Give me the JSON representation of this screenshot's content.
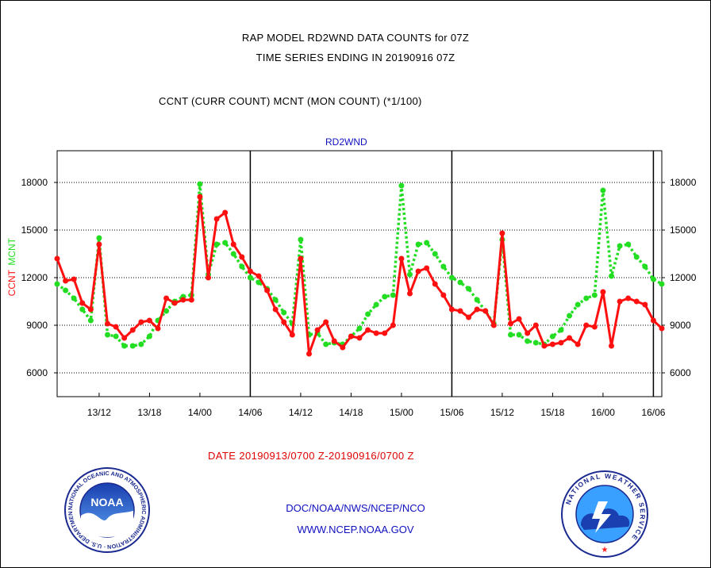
{
  "header": {
    "line1": "RAP MODEL RD2WND DATA COUNTS for 07Z",
    "line2": "TIME SERIES ENDING IN 20190916 07Z",
    "subtitle": "CCNT (CURR COUNT) MCNT (MON COUNT) (*1/100)"
  },
  "colors": {
    "ccnt": "#ff1010",
    "mcnt": "#22dd22",
    "blue_text": "#1010c0"
  },
  "chart_data": {
    "type": "line",
    "title": "RD2WND",
    "ylabel_left_red": "CCNT",
    "ylabel_left_green": "MCNT",
    "xlabel": "DATE 20190913/0700 Z-20190916/0700 Z",
    "ylim": [
      4500,
      20000
    ],
    "yticks": [
      6000,
      9000,
      12000,
      15000,
      18000
    ],
    "ytick_labels": [
      "6000",
      "9000",
      "12000",
      "15000",
      "18000"
    ],
    "xlim": [
      0,
      72
    ],
    "xticks": [
      5,
      11,
      17,
      23,
      29,
      35,
      41,
      47,
      53,
      59,
      65,
      71
    ],
    "xtick_labels": [
      "13/12",
      "13/18",
      "14/00",
      "14/06",
      "14/12",
      "14/18",
      "15/00",
      "15/06",
      "15/12",
      "15/18",
      "16/00",
      "16/06"
    ],
    "day_separators": [
      23,
      47,
      71
    ],
    "x": [
      0,
      1,
      2,
      3,
      4,
      5,
      6,
      7,
      8,
      9,
      10,
      11,
      12,
      13,
      14,
      15,
      16,
      17,
      18,
      19,
      20,
      21,
      22,
      23,
      24,
      25,
      26,
      27,
      28,
      29,
      30,
      31,
      32,
      33,
      34,
      35,
      36,
      37,
      38,
      39,
      40,
      41,
      42,
      43,
      44,
      45,
      46,
      47,
      48,
      49,
      50,
      51,
      52,
      53,
      54,
      55,
      56,
      57,
      58,
      59,
      60,
      61,
      62,
      63,
      64,
      65,
      66,
      67,
      68,
      69,
      70,
      71,
      72
    ],
    "grid": true,
    "series": [
      {
        "name": "CCNT",
        "color": "#ff1010",
        "style": "solid",
        "values": [
          13200,
          11800,
          11900,
          10400,
          10000,
          14100,
          9100,
          8900,
          8200,
          8700,
          9200,
          9300,
          8800,
          10700,
          10400,
          10600,
          10600,
          17100,
          12000,
          15700,
          16100,
          14100,
          13300,
          12400,
          12100,
          11200,
          10000,
          9200,
          8400,
          13200,
          7200,
          8700,
          9200,
          8000,
          7600,
          8300,
          8200,
          8700,
          8500,
          8500,
          9000,
          13200,
          11000,
          12400,
          12600,
          11600,
          10900,
          10000,
          9900,
          9500,
          10000,
          9900,
          9000,
          14800,
          9100,
          9400,
          8500,
          9000,
          7700,
          7800,
          7900,
          8200,
          7800,
          9000,
          8900,
          11100,
          7700,
          10500,
          10700,
          10500,
          10300,
          9300,
          8800
        ]
      },
      {
        "name": "MCNT",
        "color": "#22dd22",
        "style": "dotted",
        "values": [
          11600,
          11200,
          10700,
          10000,
          9300,
          14500,
          8400,
          8300,
          7700,
          7700,
          7800,
          8300,
          9300,
          9900,
          10500,
          10800,
          10900,
          17900,
          12200,
          14100,
          14200,
          13500,
          12700,
          12000,
          11700,
          11300,
          10600,
          9800,
          9100,
          14400,
          8400,
          8500,
          7800,
          7900,
          7800,
          8300,
          8800,
          9700,
          10300,
          10800,
          10900,
          17800,
          12200,
          14100,
          14200,
          13500,
          12700,
          12000,
          11700,
          11300,
          10600,
          9900,
          9100,
          14400,
          8400,
          8400,
          8000,
          7900,
          7800,
          8300,
          8700,
          9600,
          10300,
          10700,
          10900,
          17500,
          12100,
          14000,
          14100,
          13300,
          12700,
          11900,
          11600
        ]
      }
    ]
  },
  "footer": {
    "line1": "DOC/NOAA/NWS/NCEP/NCO",
    "line2": "WWW.NCEP.NOAA.GOV",
    "noaa_logo_text": "NOAA",
    "noaa_ring_text": "NATIONAL OCEANIC AND ATMOSPHERIC ADMINISTRATION · U.S. DEPARTMENT OF COMMERCE",
    "nws_ring_text": "NATIONAL WEATHER SERVICE"
  }
}
